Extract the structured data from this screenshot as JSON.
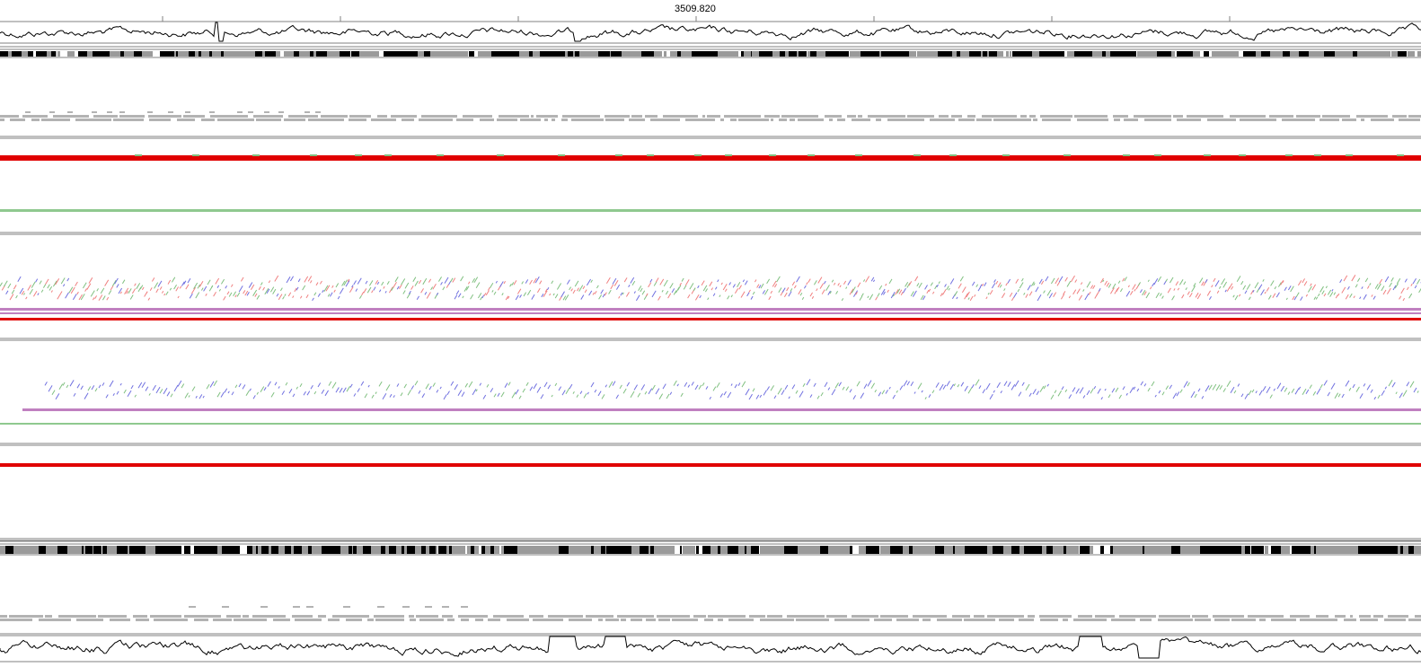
{
  "ruler": {
    "position_label": "3509.820"
  },
  "colors": {
    "background": "#ffffff",
    "line": "#000000",
    "frame_grey": "#808080",
    "feature_grey": "#b3b3b3",
    "forward_frame": "#e00000",
    "reverse_frame": "#8fc98f",
    "hit_red": "#f08080",
    "hit_green": "#80c080",
    "hit_blue": "#7070e0",
    "hit_purple": "#c080c0"
  },
  "tracks": [
    {
      "name": "top-gc-plot",
      "kind": "plot"
    },
    {
      "name": "top-sequence-bar",
      "kind": "sequence"
    },
    {
      "name": "forward-features-grey",
      "kind": "features"
    },
    {
      "name": "forward-frame-red",
      "kind": "frame"
    },
    {
      "name": "forward-frame-green",
      "kind": "frame"
    },
    {
      "name": "alignment-hits-upper",
      "kind": "hits"
    },
    {
      "name": "alignment-hits-lower",
      "kind": "hits"
    },
    {
      "name": "reverse-frame-red",
      "kind": "frame"
    },
    {
      "name": "bottom-sequence-bar",
      "kind": "sequence"
    },
    {
      "name": "reverse-features-grey",
      "kind": "features"
    },
    {
      "name": "bottom-gc-plot",
      "kind": "plot"
    }
  ]
}
